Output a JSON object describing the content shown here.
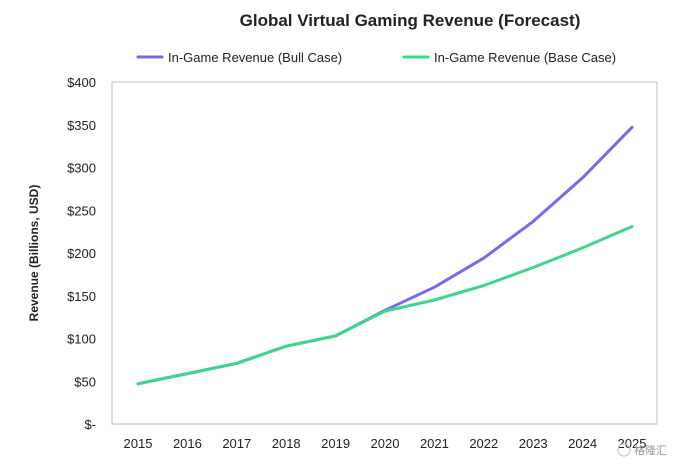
{
  "chart_data": {
    "type": "line",
    "title": "Global Virtual Gaming Revenue (Forecast)",
    "xlabel": "",
    "ylabel": "Revenue (Billions, USD)",
    "x": [
      "2015",
      "2016",
      "2017",
      "2018",
      "2019",
      "2020",
      "2021",
      "2022",
      "2023",
      "2024",
      "2025"
    ],
    "ylim": [
      0,
      400
    ],
    "yticks": [
      0,
      50,
      100,
      150,
      200,
      250,
      300,
      350,
      400
    ],
    "ytick_labels": [
      "$-",
      "$50",
      "$100",
      "$150",
      "$200",
      "$250",
      "$300",
      "$350",
      "$400"
    ],
    "grid": false,
    "legend_position": "top",
    "series": [
      {
        "name": "In-Game Revenue (Bull Case)",
        "color": "#7B68EE",
        "values": [
          47,
          59,
          71,
          91,
          103,
          133,
          160,
          194,
          237,
          288,
          347
        ]
      },
      {
        "name": "In-Game Revenue (Base Case)",
        "color": "#3DD68C",
        "values": [
          47,
          59,
          71,
          91,
          103,
          132,
          145,
          162,
          183,
          206,
          231
        ]
      }
    ]
  },
  "watermark": "格隆汇"
}
